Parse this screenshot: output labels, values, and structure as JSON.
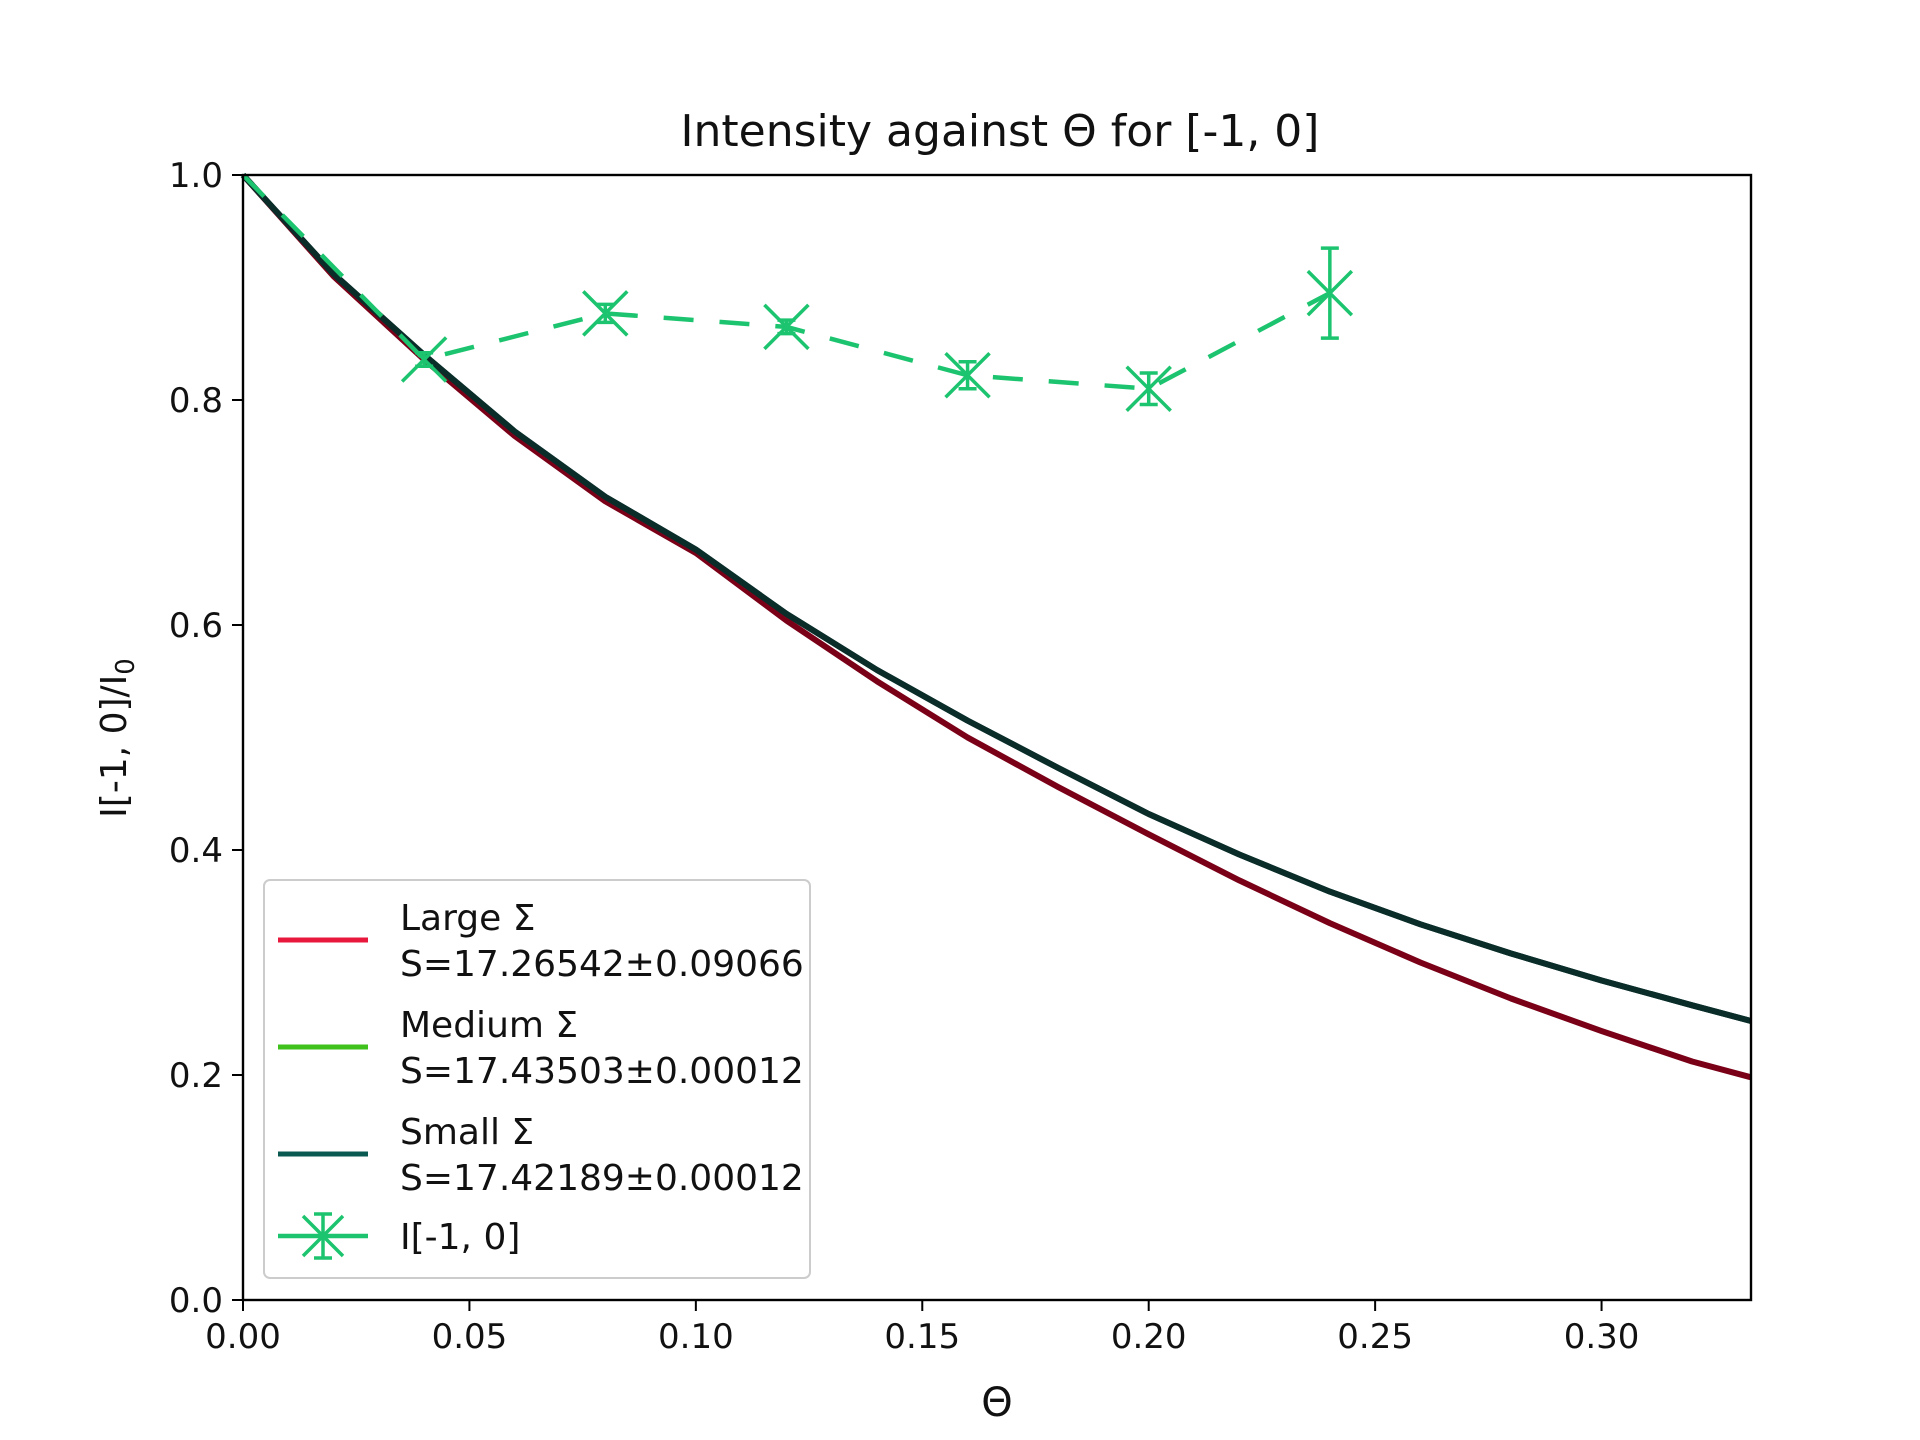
{
  "chart_data": {
    "type": "line",
    "title": "Intensity against Θ for [-1, 0]",
    "xlabel": "Θ",
    "ylabel": "I[-1, 0]/I",
    "ylabel_sub": "0",
    "xlim": [
      0.0,
      0.333
    ],
    "ylim": [
      0.0,
      1.0
    ],
    "xticks": [
      "0.00",
      "0.05",
      "0.10",
      "0.15",
      "0.20",
      "0.25",
      "0.30"
    ],
    "yticks": [
      "0.0",
      "0.2",
      "0.4",
      "0.6",
      "0.8",
      "1.0"
    ],
    "grid": false,
    "legend_position": "lower-left",
    "series": [
      {
        "name": "Large Σ",
        "label_line2": "S=17.26542±0.09066",
        "legend_color": "#e8173c",
        "plot_color": "#7a0018",
        "x": [
          0.0,
          0.02,
          0.04,
          0.06,
          0.08,
          0.1,
          0.12,
          0.14,
          0.16,
          0.18,
          0.2,
          0.22,
          0.24,
          0.26,
          0.28,
          0.3,
          0.32,
          0.333
        ],
        "y": [
          1.0,
          0.91,
          0.836,
          0.768,
          0.71,
          0.664,
          0.604,
          0.55,
          0.5,
          0.456,
          0.414,
          0.373,
          0.335,
          0.3,
          0.268,
          0.239,
          0.212,
          0.198
        ]
      },
      {
        "name": "Medium Σ",
        "label_line2": "S=17.43503±0.00012",
        "legend_color": "#3fc21c",
        "plot_color": "#0d3b36",
        "x": [
          0.0,
          0.02,
          0.04,
          0.06,
          0.08,
          0.1,
          0.12,
          0.14,
          0.16,
          0.18,
          0.2,
          0.22,
          0.24,
          0.26,
          0.28,
          0.3,
          0.32,
          0.333
        ],
        "y": [
          1.0,
          0.912,
          0.84,
          0.772,
          0.714,
          0.667,
          0.61,
          0.56,
          0.515,
          0.473,
          0.432,
          0.396,
          0.363,
          0.334,
          0.308,
          0.284,
          0.262,
          0.248
        ]
      },
      {
        "name": "Small Σ",
        "label_line2": "S=17.42189±0.00012",
        "legend_color": "#0b5a52",
        "plot_color": "#0b2d2a",
        "x": [
          0.0,
          0.02,
          0.04,
          0.06,
          0.08,
          0.1,
          0.12,
          0.14,
          0.16,
          0.18,
          0.2,
          0.22,
          0.24,
          0.26,
          0.28,
          0.3,
          0.32,
          0.333
        ],
        "y": [
          1.0,
          0.912,
          0.84,
          0.772,
          0.714,
          0.667,
          0.61,
          0.56,
          0.515,
          0.473,
          0.432,
          0.396,
          0.363,
          0.334,
          0.308,
          0.284,
          0.262,
          0.248
        ]
      },
      {
        "name": "I[-1, 0]",
        "color": "#1dc46f",
        "style": "dashed",
        "marker": "x-with-errorbars",
        "x": [
          0.0,
          0.04,
          0.08,
          0.12,
          0.16,
          0.2,
          0.24
        ],
        "y": [
          1.0,
          0.836,
          0.877,
          0.865,
          0.822,
          0.81,
          0.895
        ],
        "yerr": [
          0.0,
          0.006,
          0.008,
          0.006,
          0.012,
          0.014,
          0.04
        ]
      }
    ]
  }
}
